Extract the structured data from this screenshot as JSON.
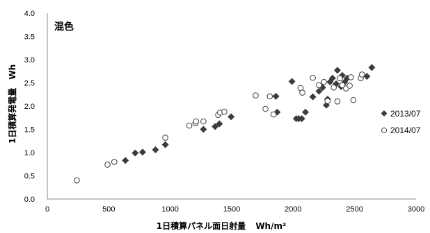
{
  "chart_data": {
    "type": "scatter",
    "title": "混色",
    "xlabel": "1日積算パネル面日射量",
    "xunit": "Wh/m²",
    "ylabel": "1日積算発電量",
    "yunit": "Wh",
    "xlim": [
      0,
      3000
    ],
    "ylim": [
      0,
      4.0
    ],
    "xticks": [
      "0",
      "500",
      "1000",
      "1500",
      "2000",
      "2500",
      "3000"
    ],
    "yticks": [
      "0.0",
      "0.5",
      "1.0",
      "1.5",
      "2.0",
      "2.5",
      "3.0",
      "3.5",
      "4.0"
    ],
    "grid": false,
    "legend_position": "right",
    "series": [
      {
        "name": "2013/07",
        "marker": "filled-diamond",
        "color": "#3c3c3c",
        "points": [
          [
            635,
            0.83
          ],
          [
            715,
            0.99
          ],
          [
            775,
            1.01
          ],
          [
            880,
            1.06
          ],
          [
            960,
            1.17
          ],
          [
            1270,
            1.5
          ],
          [
            1365,
            1.56
          ],
          [
            1400,
            1.62
          ],
          [
            1495,
            1.77
          ],
          [
            1860,
            2.21
          ],
          [
            1870,
            1.87
          ],
          [
            1990,
            2.53
          ],
          [
            2025,
            1.73
          ],
          [
            2045,
            1.73
          ],
          [
            2070,
            1.73
          ],
          [
            2100,
            1.87
          ],
          [
            2160,
            2.2
          ],
          [
            2210,
            2.32
          ],
          [
            2240,
            2.4
          ],
          [
            2270,
            2.02
          ],
          [
            2280,
            2.15
          ],
          [
            2300,
            2.52
          ],
          [
            2320,
            2.6
          ],
          [
            2350,
            2.48
          ],
          [
            2360,
            2.77
          ],
          [
            2390,
            2.42
          ],
          [
            2400,
            2.66
          ],
          [
            2420,
            2.52
          ],
          [
            2440,
            2.6
          ],
          [
            2600,
            2.64
          ],
          [
            2640,
            2.83
          ]
        ]
      },
      {
        "name": "2014/07",
        "marker": "open-circle",
        "color": "#3c3c3c",
        "points": [
          [
            240,
            0.4
          ],
          [
            490,
            0.74
          ],
          [
            545,
            0.8
          ],
          [
            960,
            1.32
          ],
          [
            1155,
            1.58
          ],
          [
            1205,
            1.63
          ],
          [
            1210,
            1.67
          ],
          [
            1270,
            1.67
          ],
          [
            1390,
            1.81
          ],
          [
            1405,
            1.86
          ],
          [
            1440,
            1.88
          ],
          [
            1695,
            2.23
          ],
          [
            1775,
            1.94
          ],
          [
            1810,
            2.21
          ],
          [
            1840,
            1.82
          ],
          [
            2060,
            2.39
          ],
          [
            2075,
            2.29
          ],
          [
            2160,
            2.61
          ],
          [
            2210,
            2.45
          ],
          [
            2250,
            2.52
          ],
          [
            2280,
            2.11
          ],
          [
            2330,
            2.4
          ],
          [
            2360,
            2.1
          ],
          [
            2380,
            2.6
          ],
          [
            2400,
            2.45
          ],
          [
            2430,
            2.38
          ],
          [
            2460,
            2.44
          ],
          [
            2470,
            2.62
          ],
          [
            2490,
            2.13
          ],
          [
            2550,
            2.6
          ],
          [
            2560,
            2.68
          ]
        ]
      }
    ]
  }
}
